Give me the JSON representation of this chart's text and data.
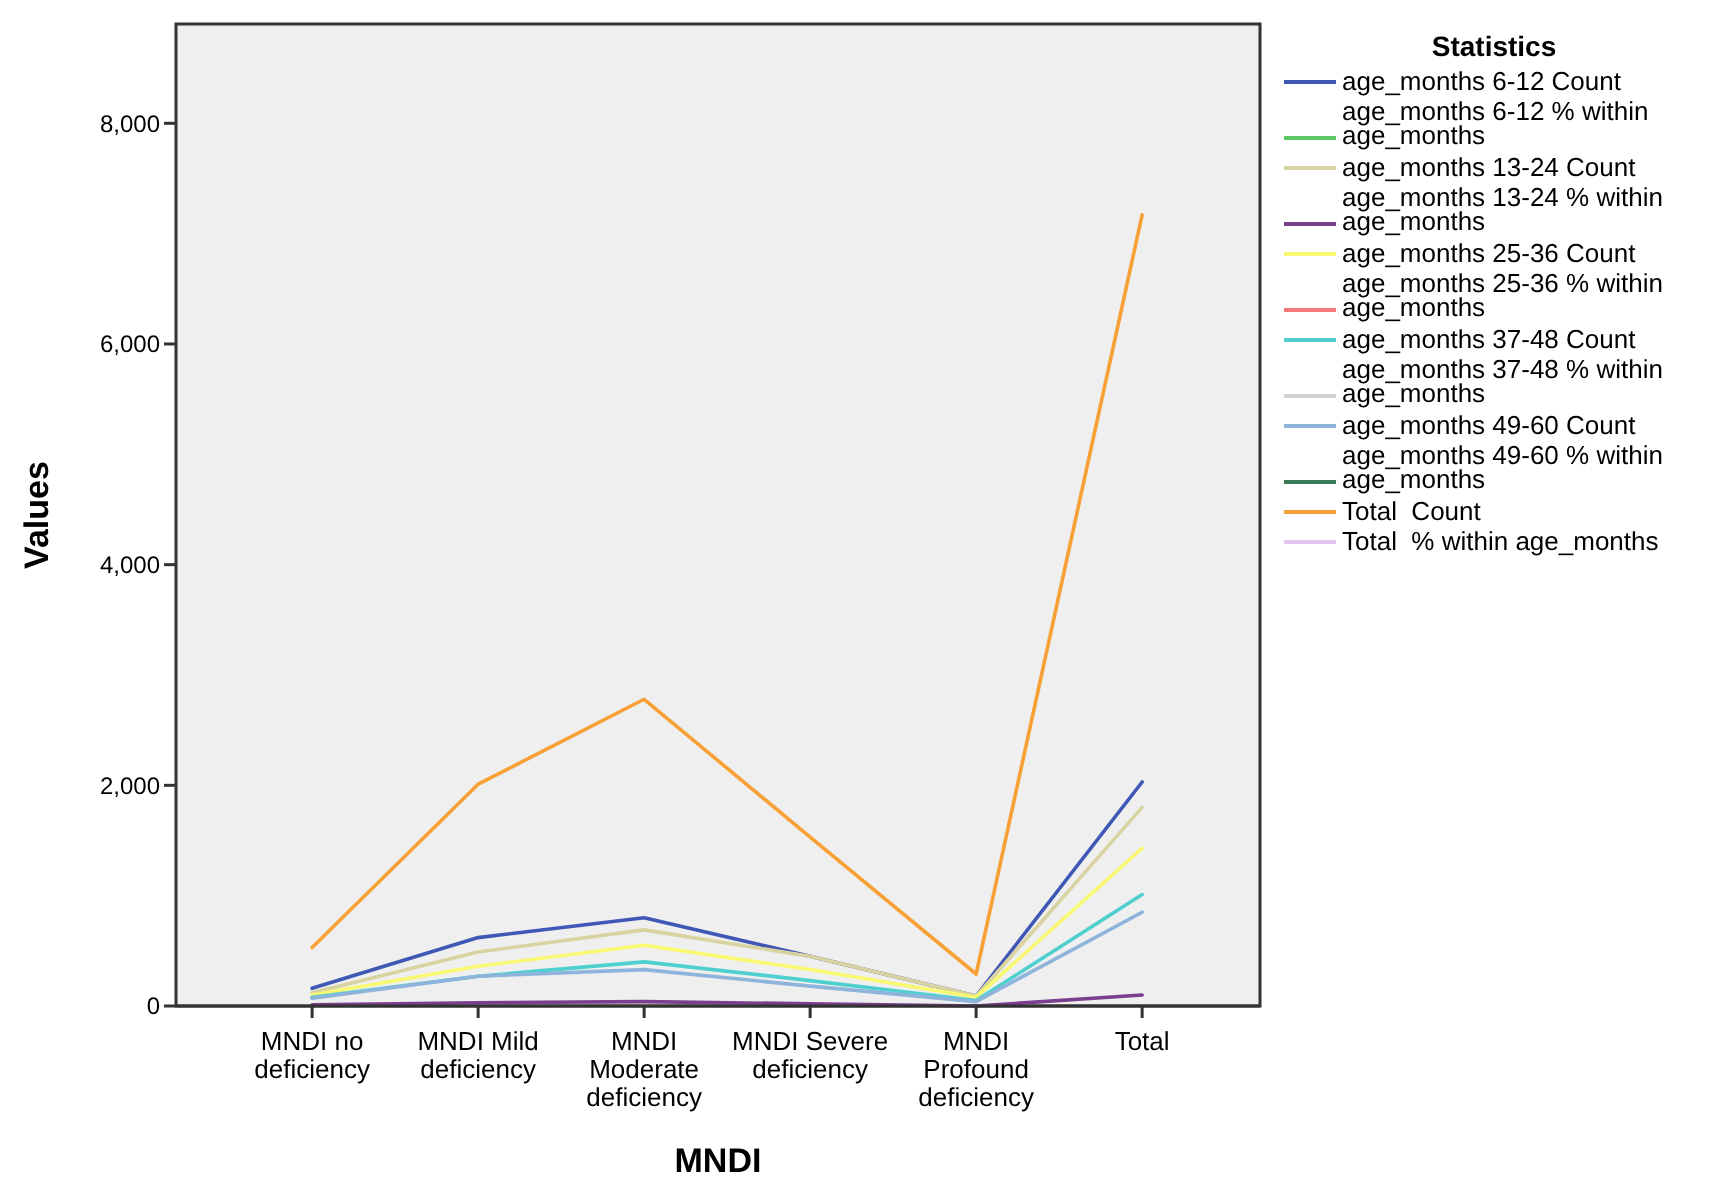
{
  "chart_data": {
    "type": "line",
    "xlabel": "MNDI",
    "ylabel": "Values",
    "legend_title": "Statistics",
    "legend": "right",
    "grid": false,
    "marker": "none",
    "line_style": "solid",
    "categories": [
      "MNDI no deficiency",
      "MNDI Mild deficiency",
      "MNDI Moderate deficiency",
      "MNDI Severe deficiency",
      "MNDI Profound deficiency",
      "Total"
    ],
    "ylim": [
      0,
      8900
    ],
    "yticks": [
      0,
      {
        "value": 2000,
        "label": "2,000"
      },
      {
        "value": 4000,
        "label": "4,000"
      },
      {
        "value": 6000,
        "label": "6,000"
      },
      {
        "value": 8000,
        "label": "8,000"
      }
    ],
    "series": [
      {
        "name": "age_months 6-12 Count",
        "color": "#3f57b5",
        "values": [
          160,
          620,
          800,
          450,
          90,
          2030
        ]
      },
      {
        "name": "age_months 6-12 % within age_months",
        "color": "#5ec962",
        "values": [
          null,
          null,
          null,
          null,
          null,
          null
        ]
      },
      {
        "name": "age_months 13-24 Count",
        "color": "#d8d3a1",
        "values": [
          120,
          490,
          690,
          450,
          90,
          1800
        ]
      },
      {
        "name": "age_months 13-24 % within age_months",
        "color": "#7b3f8f",
        "values": [
          10,
          30,
          40,
          20,
          0,
          100
        ]
      },
      {
        "name": "age_months 25-36 Count",
        "color": "#f9f871",
        "values": [
          100,
          360,
          550,
          330,
          80,
          1430
        ]
      },
      {
        "name": "age_months 25-36 % within age_months",
        "color": "#f47a7a",
        "values": [
          null,
          null,
          null,
          null,
          null,
          null
        ]
      },
      {
        "name": "age_months 37-48 Count",
        "color": "#4fcfcf",
        "values": [
          80,
          270,
          400,
          230,
          50,
          1010
        ]
      },
      {
        "name": "age_months 37-48 % within age_months",
        "color": "#d3d3d3",
        "values": [
          null,
          null,
          null,
          null,
          null,
          null
        ]
      },
      {
        "name": "age_months 49-60 Count",
        "color": "#8fb4dc",
        "values": [
          70,
          270,
          330,
          180,
          40,
          850
        ]
      },
      {
        "name": "age_months 49-60 % within age_months",
        "color": "#3b7a57",
        "values": [
          null,
          null,
          null,
          null,
          null,
          null
        ]
      },
      {
        "name": "Total  Count",
        "color": "#f7a035",
        "values": [
          530,
          2010,
          2780,
          1530,
          290,
          7170
        ]
      },
      {
        "name": "Total  % within age_months",
        "color": "#e2c5f0",
        "values": [
          null,
          null,
          null,
          null,
          null,
          null
        ]
      }
    ]
  }
}
